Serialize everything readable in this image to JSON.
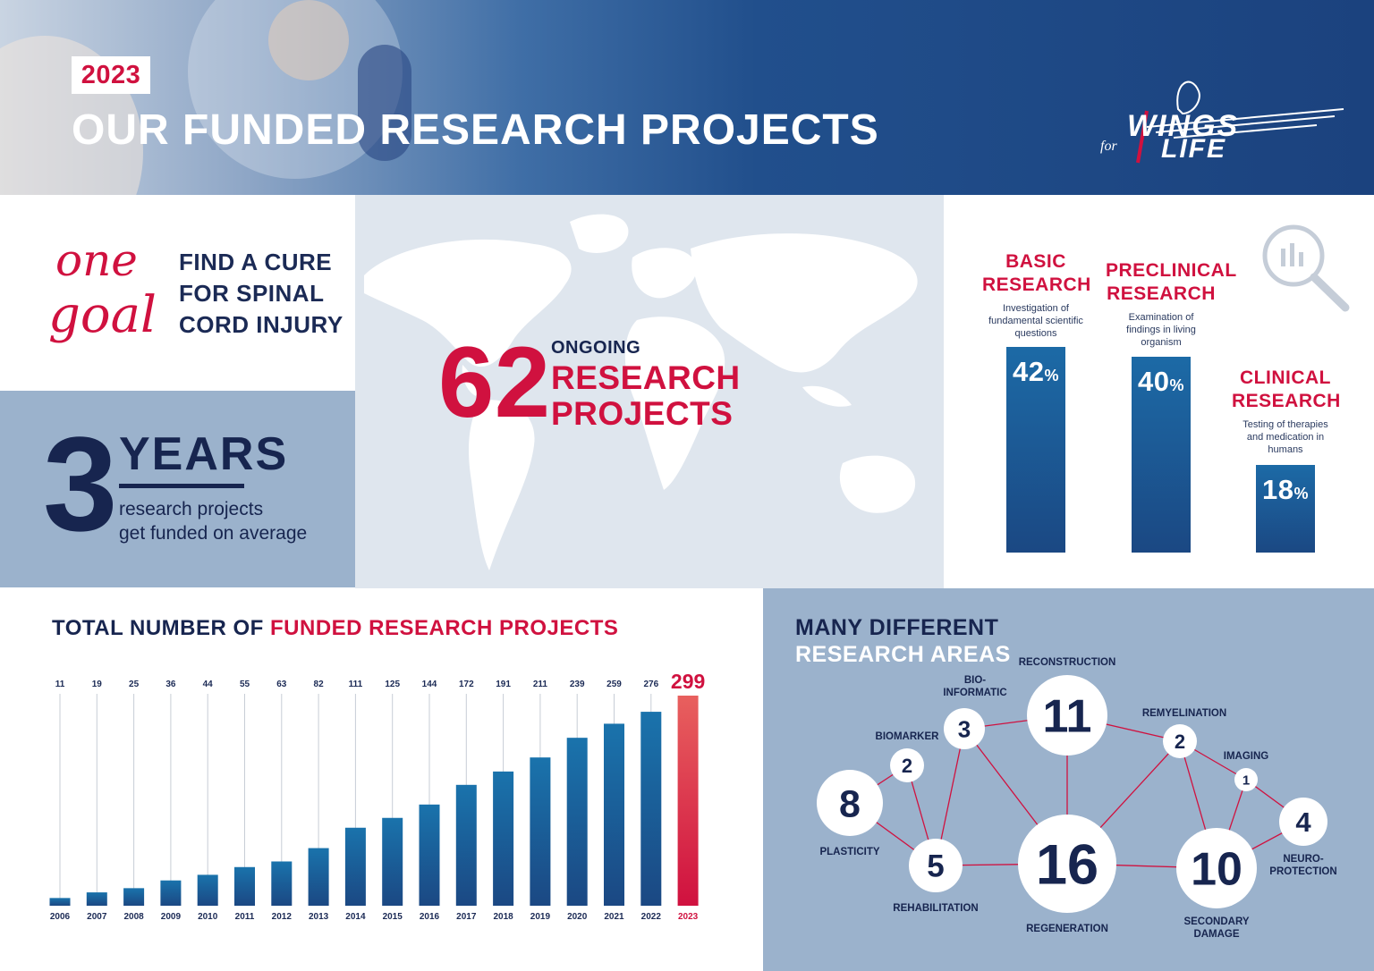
{
  "header": {
    "year": "2023",
    "title": "OUR FUNDED RESEARCH PROJECTS",
    "logo_word1": "WINGS",
    "logo_word2": "LIFE",
    "logo_word_for": "for"
  },
  "goal": {
    "script_one": "one",
    "script_goal": "goal",
    "line1": "FIND A CURE",
    "line2": "FOR SPINAL",
    "line3": "CORD INJURY"
  },
  "years": {
    "number": "3",
    "word": "YEARS",
    "desc1": "research projects",
    "desc2": "get funded on average"
  },
  "ongoing": {
    "number": "62",
    "small": "ONGOING",
    "line1": "RESEARCH",
    "line2": "PROJECTS"
  },
  "research_types": [
    {
      "title1": "BASIC",
      "title2": "RESEARCH",
      "desc": [
        "Investigation of",
        "fundamental scientific",
        "questions"
      ],
      "value": 42,
      "unit": "%"
    },
    {
      "title1": "PRECLINICAL",
      "title2": "RESEARCH",
      "desc": [
        "Examination of",
        "findings in living",
        "organism"
      ],
      "value": 40,
      "unit": "%"
    },
    {
      "title1": "CLINICAL",
      "title2": "RESEARCH",
      "desc": [
        "Testing of therapies",
        "and medication in",
        "humans"
      ],
      "value": 18,
      "unit": "%"
    }
  ],
  "chart_title": {
    "part1": "TOTAL NUMBER OF ",
    "part2": "FUNDED RESEARCH PROJECTS"
  },
  "chart_data": {
    "type": "bar",
    "title": "TOTAL NUMBER OF FUNDED RESEARCH PROJECTS",
    "categories": [
      "2006",
      "2007",
      "2008",
      "2009",
      "2010",
      "2011",
      "2012",
      "2013",
      "2014",
      "2015",
      "2016",
      "2017",
      "2018",
      "2019",
      "2020",
      "2021",
      "2022",
      "2023"
    ],
    "values": [
      11,
      19,
      25,
      36,
      44,
      55,
      63,
      82,
      111,
      125,
      144,
      172,
      191,
      211,
      239,
      259,
      276,
      299
    ],
    "highlight": "2023",
    "colors": {
      "bar": "#1b4883",
      "bar_top": "#1a73ac",
      "highlight": "#d0113f",
      "highlight_top": "#e8605e"
    },
    "ylim": [
      0,
      299
    ]
  },
  "areas": {
    "title1": "MANY DIFFERENT",
    "title2": "RESEARCH AREAS",
    "nodes": [
      {
        "id": "plasticity",
        "value": "8",
        "label": [
          "PLASTICITY"
        ]
      },
      {
        "id": "biomarker",
        "value": "2",
        "label": [
          "BIOMARKER"
        ]
      },
      {
        "id": "bioinformatic",
        "value": "3",
        "label": [
          "BIO-",
          "INFORMATIC"
        ]
      },
      {
        "id": "reconstruction",
        "value": "11",
        "label": [
          "RECONSTRUCTION"
        ]
      },
      {
        "id": "remyelination",
        "value": "2",
        "label": [
          "REMYELINATION"
        ]
      },
      {
        "id": "imaging",
        "value": "1",
        "label": [
          "IMAGING"
        ]
      },
      {
        "id": "neuroprotection",
        "value": "4",
        "label": [
          "NEURO-",
          "PROTECTION"
        ]
      },
      {
        "id": "rehabilitation",
        "value": "5",
        "label": [
          "REHABILITATION"
        ]
      },
      {
        "id": "regeneration",
        "value": "16",
        "label": [
          "REGENERATION"
        ]
      },
      {
        "id": "secondary-damage",
        "value": "10",
        "label": [
          "SECONDARY",
          "DAMAGE"
        ]
      }
    ]
  }
}
